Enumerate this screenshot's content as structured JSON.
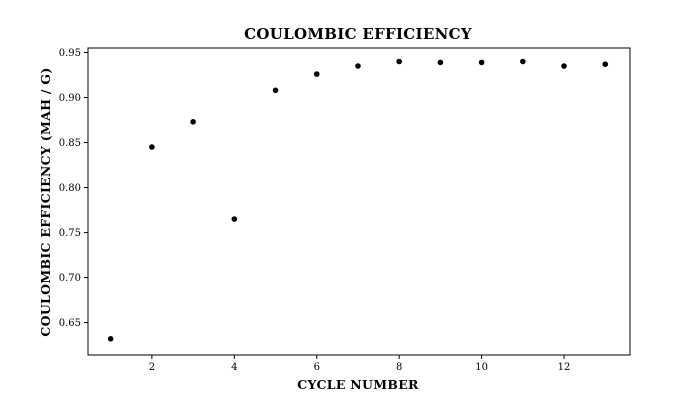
{
  "chart_data": {
    "type": "scatter",
    "title": "COULOMBIC EFFICIENCY",
    "xlabel": "CYCLE NUMBER",
    "ylabel": "COULOMBIC EFFICIENCY (MAH / G)",
    "x": [
      1,
      2,
      3,
      4,
      5,
      6,
      7,
      8,
      9,
      10,
      11,
      12,
      13
    ],
    "y": [
      0.632,
      0.845,
      0.873,
      0.765,
      0.908,
      0.926,
      0.935,
      0.94,
      0.939,
      0.939,
      0.94,
      0.935,
      0.937
    ],
    "xlim": [
      0.45,
      13.6
    ],
    "ylim": [
      0.614,
      0.955
    ],
    "xticks": [
      2,
      4,
      6,
      8,
      10,
      12
    ],
    "xtick_labels": [
      "2",
      "4",
      "6",
      "8",
      "10",
      "12"
    ],
    "yticks": [
      0.65,
      0.7,
      0.75,
      0.8,
      0.85,
      0.9,
      0.95
    ],
    "ytick_labels": [
      "0.65",
      "0.70",
      "0.75",
      "0.80",
      "0.85",
      "0.90",
      "0.95"
    ],
    "grid": false,
    "marker_color": "#000000"
  }
}
